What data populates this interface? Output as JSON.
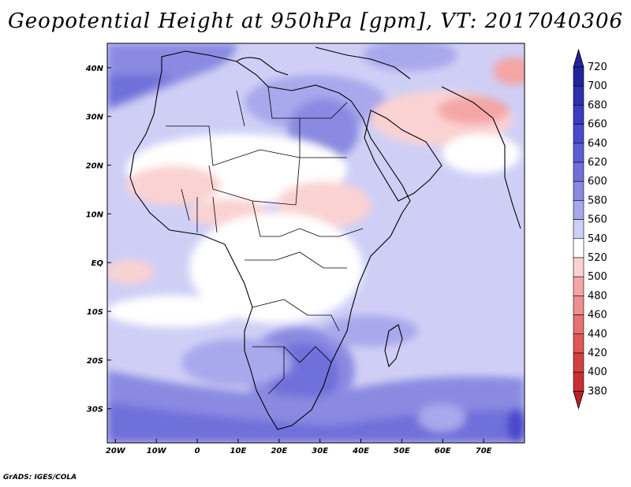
{
  "title": "Geopotential Height at 950hPa [gpm], VT: 2017040306",
  "credit": "GrADS: IGES/COLA",
  "map": {
    "lon_range": [
      -22,
      80
    ],
    "lat_range": [
      -37,
      45
    ],
    "x_ticks": [
      "20W",
      "10W",
      "0",
      "10E",
      "20E",
      "30E",
      "40E",
      "50E",
      "60E",
      "70E"
    ],
    "x_tick_values": [
      -20,
      -10,
      0,
      10,
      20,
      30,
      40,
      50,
      60,
      70
    ],
    "y_ticks": [
      "40N",
      "30N",
      "20N",
      "10N",
      "EQ",
      "10S",
      "20S",
      "30S"
    ],
    "y_tick_values": [
      40,
      30,
      20,
      10,
      0,
      -10,
      -20,
      -30
    ]
  },
  "colorbar": {
    "levels": [
      "720",
      "700",
      "680",
      "660",
      "640",
      "620",
      "600",
      "580",
      "560",
      "540",
      "520",
      "500",
      "480",
      "460",
      "440",
      "420",
      "400",
      "380"
    ],
    "colors": [
      "#24249a",
      "#2f2fb0",
      "#3c3cc2",
      "#4a4acc",
      "#5e5ed4",
      "#7070da",
      "#8a8ae2",
      "#a8a8ec",
      "#cfcff6",
      "#ffffff",
      "#fbd2d2",
      "#f4a6a6",
      "#ee8e8e",
      "#e67272",
      "#df5858",
      "#d44040",
      "#c83030",
      "#b82222"
    ]
  }
}
